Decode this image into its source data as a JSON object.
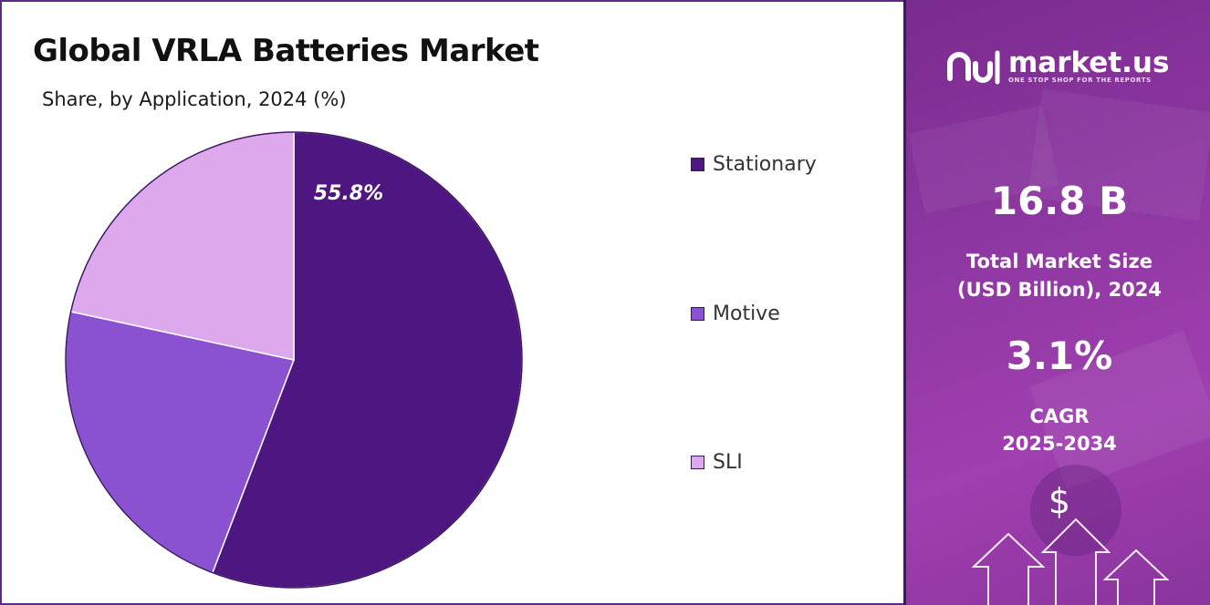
{
  "chart_data": {
    "type": "pie",
    "title": "Global VRLA Batteries Market",
    "subtitle": "Share, by Application, 2024 (%)",
    "series": [
      {
        "name": "Stationary",
        "value": 55.8,
        "color": "#4e1680",
        "label": "55.8%"
      },
      {
        "name": "Motive",
        "value": 22.6,
        "color": "#8a52d0",
        "label": ""
      },
      {
        "name": "SLI",
        "value": 21.6,
        "color": "#dea8ec",
        "label": ""
      }
    ],
    "legend_position": "right"
  },
  "sidebar": {
    "brand": "market.us",
    "tagline": "ONE STOP SHOP FOR THE REPORTS",
    "market_size_value": "16.8 B",
    "market_size_label_1": "Total Market Size",
    "market_size_label_2": "(USD Billion), 2024",
    "cagr_value": "3.1%",
    "cagr_label_1": "CAGR",
    "cagr_label_2": "2025-2034",
    "currency_symbol": "$",
    "colors": {
      "accent": "#8c36a0",
      "dark": "#3e1a5c"
    }
  }
}
